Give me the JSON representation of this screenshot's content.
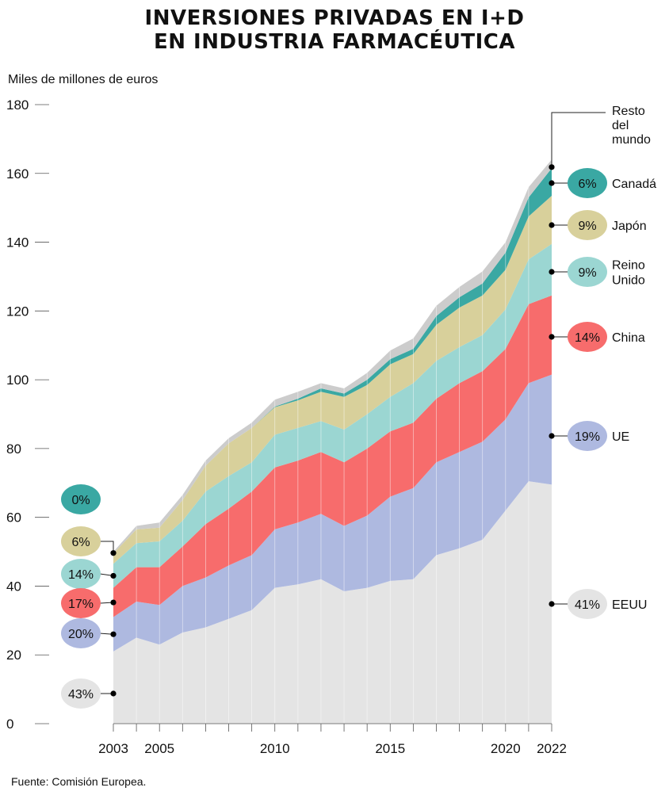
{
  "title_line1": "INVERSIONES PRIVADAS EN I+D",
  "title_line2": "EN INDUSTRIA FARMACÉUTICA",
  "source": "Fuente: Comisión Europea.",
  "chart_data": {
    "type": "area",
    "stacked": true,
    "ylabel": "Miles de millones de euros",
    "ylim": [
      0,
      180
    ],
    "yticks": [
      0,
      20,
      40,
      60,
      80,
      100,
      120,
      140,
      160,
      180
    ],
    "xlim": [
      2003,
      2022
    ],
    "xticks": [
      2003,
      2005,
      2010,
      2015,
      2020,
      2022
    ],
    "x": [
      2003,
      2004,
      2005,
      2006,
      2007,
      2008,
      2009,
      2010,
      2011,
      2012,
      2013,
      2014,
      2015,
      2016,
      2017,
      2018,
      2019,
      2020,
      2021,
      2022
    ],
    "series": [
      {
        "name": "EEUU",
        "color": "#e4e4e4",
        "values": [
          21,
          25,
          23,
          26.5,
          28,
          30.5,
          33,
          39.5,
          40.5,
          42,
          38.5,
          39.5,
          41.5,
          42,
          49,
          51,
          53.5,
          62,
          70.5,
          69.5
        ],
        "share_2003": "43%",
        "share_2022": "41%"
      },
      {
        "name": "UE",
        "color": "#aeb9e0",
        "values": [
          10,
          10.5,
          11.5,
          13.5,
          14.5,
          15.5,
          16,
          17,
          18,
          19,
          19,
          21,
          24.5,
          26.5,
          27,
          28,
          28.5,
          26.5,
          28.5,
          32
        ],
        "share_2003": "20%",
        "share_2022": "19%"
      },
      {
        "name": "China",
        "color": "#f76c6c",
        "values": [
          8.5,
          10,
          11,
          11.5,
          15.5,
          16.5,
          18.5,
          18,
          18,
          18,
          18.5,
          19.5,
          19,
          19,
          18.5,
          20,
          20.5,
          20.5,
          23,
          23
        ],
        "share_2003": "17%",
        "share_2022": "14%"
      },
      {
        "name": "Reino Unido",
        "color": "#9bd6d2",
        "values": [
          7,
          7,
          7.5,
          7.5,
          9.5,
          9.5,
          8.5,
          9.5,
          9.5,
          9,
          9.5,
          10,
          10,
          11.5,
          11,
          10.5,
          10.5,
          11.5,
          13,
          15
        ],
        "share_2003": "14%",
        "share_2022": "9%"
      },
      {
        "name": "Japón",
        "color": "#d8d09b",
        "values": [
          3,
          4,
          4,
          6,
          7.5,
          9.5,
          10,
          8,
          8,
          8.5,
          9.5,
          8.5,
          9.5,
          8.5,
          10.5,
          11.5,
          11.5,
          11.5,
          12.5,
          14
        ],
        "share_2003": "6%",
        "share_2022": "9%"
      },
      {
        "name": "Canadá",
        "color": "#3aa8a3",
        "values": [
          0,
          0,
          0,
          0,
          0,
          0,
          0,
          0.2,
          0.5,
          1,
          1,
          1.5,
          1.5,
          1.5,
          2.5,
          3,
          3.5,
          5,
          5.5,
          8
        ],
        "share_2003": "0%",
        "share_2022": "6%"
      },
      {
        "name": "Resto del mundo",
        "color": "#cccccc",
        "values": [
          0.5,
          1,
          1.5,
          1.5,
          1.5,
          1.5,
          1.5,
          2,
          2,
          1.5,
          1.5,
          2,
          2.5,
          3,
          3,
          3,
          3.5,
          3,
          3,
          2.5
        ]
      }
    ],
    "labels_2003": [
      {
        "series": "Canadá",
        "text": "0%"
      },
      {
        "series": "Japón",
        "text": "6%"
      },
      {
        "series": "Reino Unido",
        "text": "14%"
      },
      {
        "series": "China",
        "text": "17%"
      },
      {
        "series": "UE",
        "text": "20%"
      },
      {
        "series": "EEUU",
        "text": "43%"
      }
    ],
    "labels_2022": [
      {
        "series": "Resto del mundo",
        "text": "",
        "name_lines": [
          "Resto",
          "del",
          "mundo"
        ]
      },
      {
        "series": "Canadá",
        "text": "6%",
        "name_lines": [
          "Canadá"
        ]
      },
      {
        "series": "Japón",
        "text": "9%",
        "name_lines": [
          "Japón"
        ]
      },
      {
        "series": "Reino Unido",
        "text": "9%",
        "name_lines": [
          "Reino",
          "Unido"
        ]
      },
      {
        "series": "China",
        "text": "14%",
        "name_lines": [
          "China"
        ]
      },
      {
        "series": "UE",
        "text": "19%",
        "name_lines": [
          "UE"
        ]
      },
      {
        "series": "EEUU",
        "text": "41%",
        "name_lines": [
          "EEUU"
        ]
      }
    ]
  }
}
